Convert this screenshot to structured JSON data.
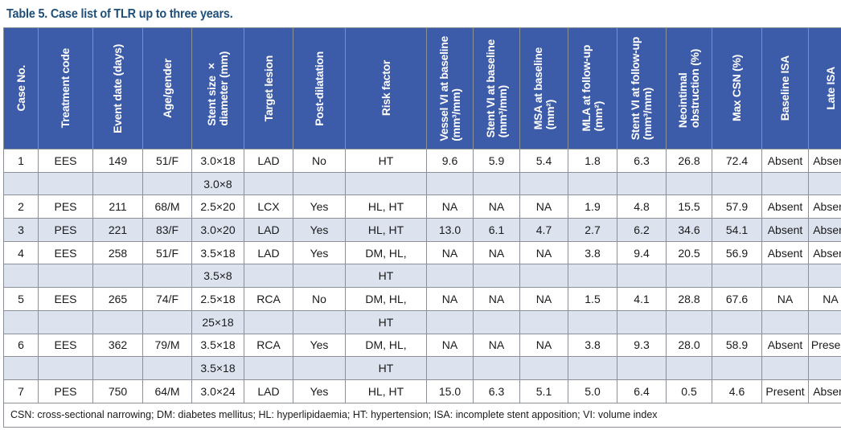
{
  "caption": "Table 5. Case list of TLR up to three years.",
  "headers": [
    "Case No.",
    "Treatment code",
    "Event date (days)",
    "Age/gender",
    "Stent size ×\ndiameter (mm)",
    "Target lesion",
    "Post-dilatation",
    "Risk factor",
    "Vessel VI at baseline\n(mm³/mm)",
    "Stent VI at baseline\n(mm³/mm)",
    "MSA at baseline\n(mm²)",
    "MLA at follow-up\n(mm²)",
    "Stent VI at follow-up\n(mm³/mm)",
    "Neointimal\nobstruction (%)",
    "Max CSN (%)",
    "Baseline ISA",
    "Late ISA"
  ],
  "rows": [
    [
      "1",
      "EES",
      "149",
      "51/F",
      "3.0×18",
      "LAD",
      "No",
      "HT",
      "9.6",
      "5.9",
      "5.4",
      "1.8",
      "6.3",
      "26.8",
      "72.4",
      "Absent",
      "Absent"
    ],
    [
      "",
      "",
      "",
      "",
      "3.0×8",
      "",
      "",
      "",
      "",
      "",
      "",
      "",
      "",
      "",
      "",
      "",
      ""
    ],
    [
      "2",
      "PES",
      "211",
      "68/M",
      "2.5×20",
      "LCX",
      "Yes",
      "HL, HT",
      "NA",
      "NA",
      "NA",
      "1.9",
      "4.8",
      "15.5",
      "57.9",
      "Absent",
      "Absent"
    ],
    [
      "3",
      "PES",
      "221",
      "83/F",
      "3.0×20",
      "LAD",
      "Yes",
      "HL, HT",
      "13.0",
      "6.1",
      "4.7",
      "2.7",
      "6.2",
      "34.6",
      "54.1",
      "Absent",
      "Absent"
    ],
    [
      "4",
      "EES",
      "258",
      "51/F",
      "3.5×18",
      "LAD",
      "Yes",
      "DM, HL,",
      "NA",
      "NA",
      "NA",
      "3.8",
      "9.4",
      "20.5",
      "56.9",
      "Absent",
      "Absent"
    ],
    [
      "",
      "",
      "",
      "",
      "3.5×8",
      "",
      "",
      "HT",
      "",
      "",
      "",
      "",
      "",
      "",
      "",
      "",
      ""
    ],
    [
      "5",
      "EES",
      "265",
      "74/F",
      "2.5×18",
      "RCA",
      "No",
      "DM, HL,",
      "NA",
      "NA",
      "NA",
      "1.5",
      "4.1",
      "28.8",
      "67.6",
      "NA",
      "NA"
    ],
    [
      "",
      "",
      "",
      "",
      "25×18",
      "",
      "",
      "HT",
      "",
      "",
      "",
      "",
      "",
      "",
      "",
      "",
      ""
    ],
    [
      "6",
      "EES",
      "362",
      "79/M",
      "3.5×18",
      "RCA",
      "Yes",
      "DM, HL,",
      "NA",
      "NA",
      "NA",
      "3.8",
      "9.3",
      "28.0",
      "58.9",
      "Absent",
      "Present"
    ],
    [
      "",
      "",
      "",
      "",
      "3.5×18",
      "",
      "",
      "HT",
      "",
      "",
      "",
      "",
      "",
      "",
      "",
      "",
      ""
    ],
    [
      "7",
      "PES",
      "750",
      "64/M",
      "3.0×24",
      "LAD",
      "Yes",
      "HL, HT",
      "15.0",
      "6.3",
      "5.1",
      "5.0",
      "6.4",
      "0.5",
      "4.6",
      "Present",
      "Absent"
    ]
  ],
  "footnote": "CSN: cross-sectional narrowing; DM: diabetes mellitus; HL: hyperlipidaemia; HT: hypertension; ISA: incomplete stent apposition; VI: volume index",
  "colors": {
    "header_bg": "#3c5ba8",
    "alt_row_bg": "#dce3ef",
    "caption": "#1e4f7a",
    "grid": "#8a8f98"
  }
}
